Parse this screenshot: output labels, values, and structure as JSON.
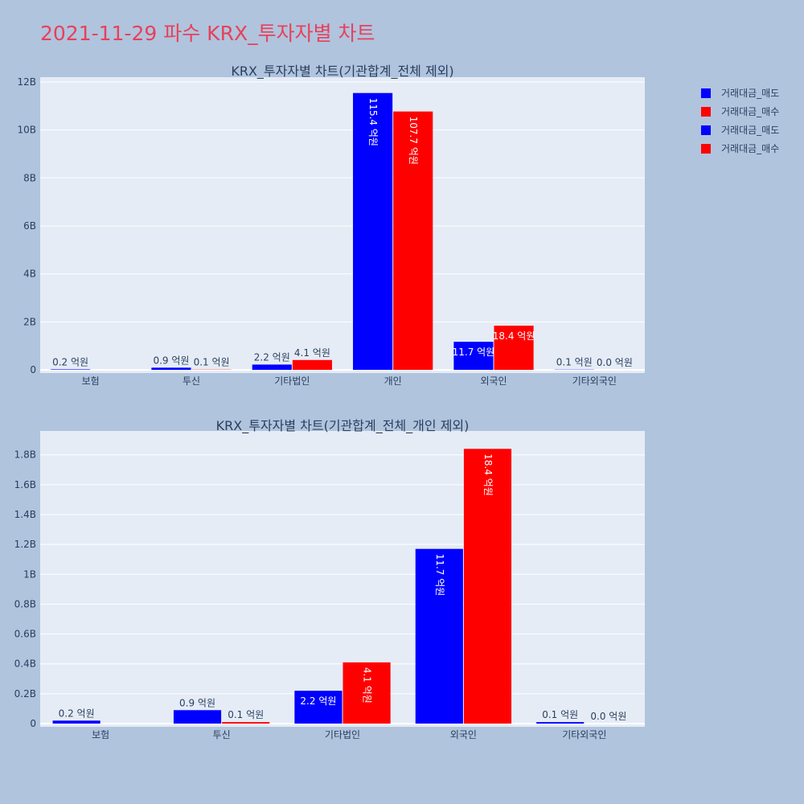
{
  "page": {
    "title": "2021-11-29 파수 KRX_투자자별 차트"
  },
  "colors": {
    "sell": "#0000ff",
    "buy": "#ff0000",
    "plot_bg": "#e5ecf6",
    "page_bg": "#b0c4de",
    "title": "#e8415a",
    "text": "#2a3f5f"
  },
  "legend": [
    {
      "label": "거래대금_매도",
      "color": "#0000ff"
    },
    {
      "label": "거래대금_매수",
      "color": "#ff0000"
    },
    {
      "label": "거래대금_매도",
      "color": "#0000ff"
    },
    {
      "label": "거래대금_매수",
      "color": "#ff0000"
    }
  ],
  "chart_data": [
    {
      "type": "bar",
      "title": "KRX_투자자별 차트(기관합계_전체 제외)",
      "categories": [
        "보험",
        "투신",
        "기타법인",
        "개인",
        "외국인",
        "기타외국인"
      ],
      "series": [
        {
          "name": "거래대금_매도",
          "values": [
            20000000,
            90000000,
            220000000,
            11540000000,
            1170000000,
            10000000
          ],
          "labels": [
            "0.2 억원",
            "0.9 억원",
            "2.2 억원",
            "115.4 억원",
            "11.7 억원",
            "0.1 억원"
          ]
        },
        {
          "name": "거래대금_매수",
          "values": [
            0,
            10000000,
            410000000,
            10770000000,
            1840000000,
            0
          ],
          "labels": [
            "",
            "0.1 억원",
            "4.1 억원",
            "107.7 억원",
            "18.4 억원",
            "0.0 억원"
          ]
        }
      ],
      "yticks": [
        0,
        2000000000,
        4000000000,
        6000000000,
        8000000000,
        10000000000,
        12000000000
      ],
      "ytick_labels": [
        "0",
        "2B",
        "4B",
        "6B",
        "8B",
        "10B",
        "12B"
      ],
      "ylim": [
        0,
        12200000000
      ],
      "grid": true
    },
    {
      "type": "bar",
      "title": "KRX_투자자별 차트(기관합계_전체_개인 제외)",
      "categories": [
        "보험",
        "투신",
        "기타법인",
        "외국인",
        "기타외국인"
      ],
      "series": [
        {
          "name": "거래대금_매도",
          "values": [
            20000000,
            90000000,
            220000000,
            1170000000,
            10000000
          ],
          "labels": [
            "0.2 억원",
            "0.9 억원",
            "2.2 억원",
            "11.7 억원",
            "0.1 억원"
          ]
        },
        {
          "name": "거래대금_매수",
          "values": [
            0,
            10000000,
            410000000,
            1840000000,
            0
          ],
          "labels": [
            "",
            "0.1 억원",
            "4.1 억원",
            "18.4 억원",
            "0.0 억원"
          ]
        }
      ],
      "yticks": [
        0,
        200000000,
        400000000,
        600000000,
        800000000,
        1000000000,
        1200000000,
        1400000000,
        1600000000,
        1800000000
      ],
      "ytick_labels": [
        "0",
        "0.2B",
        "0.4B",
        "0.6B",
        "0.8B",
        "1B",
        "1.2B",
        "1.4B",
        "1.6B",
        "1.8B"
      ],
      "ylim": [
        0,
        1960000000
      ],
      "grid": true
    }
  ]
}
